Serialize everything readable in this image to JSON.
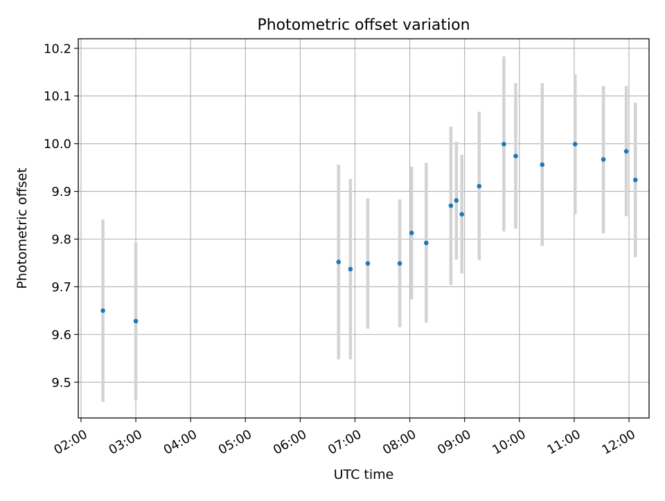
{
  "chart_data": {
    "type": "scatter",
    "title": "Photometric offset variation",
    "xlabel": "UTC time",
    "ylabel": "Photometric offset",
    "xlim": [
      "01:57",
      "12:22"
    ],
    "ylim": [
      9.425,
      10.22
    ],
    "x_ticks": [
      "02:00",
      "03:00",
      "04:00",
      "05:00",
      "06:00",
      "07:00",
      "08:00",
      "09:00",
      "10:00",
      "11:00",
      "12:00"
    ],
    "y_ticks": [
      "9.5",
      "9.6",
      "9.7",
      "9.8",
      "9.9",
      "10.0",
      "10.1",
      "10.2"
    ],
    "grid": true,
    "marker_color": "#1f77b4",
    "errorbar_color": "#d3d3d3",
    "points": [
      {
        "x": "02:24",
        "y": 9.65,
        "ylow": 9.459,
        "yhigh": 9.841
      },
      {
        "x": "03:00",
        "y": 9.628,
        "ylow": 9.463,
        "yhigh": 9.793
      },
      {
        "x": "06:42",
        "y": 9.752,
        "ylow": 9.548,
        "yhigh": 9.956
      },
      {
        "x": "06:55",
        "y": 9.737,
        "ylow": 9.548,
        "yhigh": 9.926
      },
      {
        "x": "07:14",
        "y": 9.749,
        "ylow": 9.612,
        "yhigh": 9.885
      },
      {
        "x": "07:49",
        "y": 9.749,
        "ylow": 9.615,
        "yhigh": 9.883
      },
      {
        "x": "08:02",
        "y": 9.813,
        "ylow": 9.674,
        "yhigh": 9.952
      },
      {
        "x": "08:18",
        "y": 9.792,
        "ylow": 9.625,
        "yhigh": 9.96
      },
      {
        "x": "08:45",
        "y": 9.87,
        "ylow": 9.704,
        "yhigh": 10.036
      },
      {
        "x": "08:51",
        "y": 9.881,
        "ylow": 9.757,
        "yhigh": 10.004
      },
      {
        "x": "08:57",
        "y": 9.852,
        "ylow": 9.728,
        "yhigh": 9.977
      },
      {
        "x": "09:16",
        "y": 9.911,
        "ylow": 9.756,
        "yhigh": 10.067
      },
      {
        "x": "09:43",
        "y": 9.999,
        "ylow": 9.816,
        "yhigh": 10.183
      },
      {
        "x": "09:56",
        "y": 9.974,
        "ylow": 9.822,
        "yhigh": 10.127
      },
      {
        "x": "10:25",
        "y": 9.956,
        "ylow": 9.786,
        "yhigh": 10.127
      },
      {
        "x": "11:01",
        "y": 9.999,
        "ylow": 9.852,
        "yhigh": 10.146
      },
      {
        "x": "11:32",
        "y": 9.967,
        "ylow": 9.812,
        "yhigh": 10.121
      },
      {
        "x": "11:57",
        "y": 9.984,
        "ylow": 9.848,
        "yhigh": 10.121
      },
      {
        "x": "12:07",
        "y": 9.924,
        "ylow": 9.762,
        "yhigh": 10.086
      }
    ]
  }
}
